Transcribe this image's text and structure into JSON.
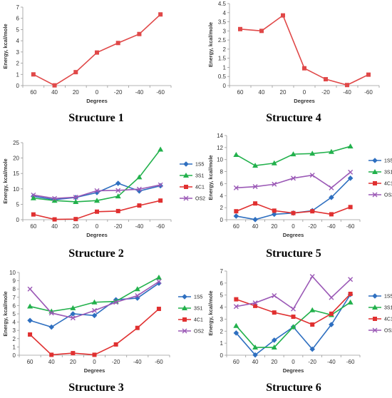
{
  "colors": {
    "1S5": "#2e6fc0",
    "3S1": "#22b14c",
    "4C1": "#e03030",
    "OS2": "#9b59b6",
    "single": "#e04848",
    "axis": "#9a9a9a",
    "text": "#333333"
  },
  "chart_data": [
    {
      "type": "line",
      "caption": "Structure 1",
      "xlabel": "Degrees",
      "ylabel": "Energy, kcal/mole",
      "categories": [
        "60",
        "40",
        "20",
        "0",
        "-20",
        "-40",
        "-60"
      ],
      "ylim": [
        0,
        7
      ],
      "yticks": [
        "0",
        "1",
        "2",
        "3",
        "4",
        "5",
        "6",
        "7"
      ],
      "legend": "none",
      "series": [
        {
          "key": "single",
          "marker": "square",
          "values": [
            1.0,
            0.02,
            1.2,
            2.95,
            3.8,
            4.6,
            6.35
          ]
        }
      ]
    },
    {
      "type": "line",
      "caption": "Structure 4",
      "xlabel": "Degrees",
      "ylabel": "Energy, kcal/mole",
      "categories": [
        "60",
        "40",
        "20",
        "0",
        "-20",
        "-40",
        "-60"
      ],
      "ylim": [
        0,
        4.5
      ],
      "yticks": [
        "0",
        "0.5",
        "1",
        "1.5",
        "2",
        "2.5",
        "3",
        "3.5",
        "4",
        "4.5"
      ],
      "legend": "none",
      "series": [
        {
          "key": "single",
          "marker": "square",
          "values": [
            3.1,
            3.0,
            3.85,
            0.95,
            0.35,
            0.03,
            0.6
          ]
        }
      ]
    },
    {
      "type": "line",
      "caption": "Structure 2",
      "xlabel": "Degrees",
      "ylabel": "Energy, kcal/mole",
      "categories": [
        "60",
        "40",
        "20",
        "0",
        "-20",
        "-40",
        "-60"
      ],
      "ylim": [
        0,
        25
      ],
      "yticks": [
        "0",
        "5",
        "10",
        "15",
        "20",
        "25"
      ],
      "legend": "right",
      "series": [
        {
          "name": "1S5",
          "key": "1S5",
          "marker": "diamond",
          "values": [
            7.6,
            6.5,
            7.2,
            8.8,
            11.8,
            9.3,
            11.0
          ]
        },
        {
          "name": "3S1",
          "key": "3S1",
          "marker": "triangle",
          "values": [
            7.0,
            6.2,
            5.8,
            6.2,
            7.6,
            13.8,
            22.8
          ]
        },
        {
          "name": "4C1",
          "key": "4C1",
          "marker": "square",
          "values": [
            1.7,
            0.1,
            0.2,
            2.6,
            2.8,
            4.6,
            6.2
          ]
        },
        {
          "name": "OS2",
          "key": "OS2",
          "marker": "x",
          "values": [
            8.0,
            6.9,
            7.3,
            9.4,
            9.5,
            9.9,
            11.3
          ]
        }
      ]
    },
    {
      "type": "line",
      "caption": "Structure 5",
      "xlabel": "Degrees",
      "ylabel": "Energy, kcal/mole",
      "categories": [
        "60",
        "40",
        "20",
        "0",
        "-20",
        "-40",
        "-60"
      ],
      "ylim": [
        0,
        14
      ],
      "yticks": [
        "0",
        "2",
        "4",
        "6",
        "8",
        "10",
        "12",
        "14"
      ],
      "legend": "right",
      "series": [
        {
          "name": "1S5",
          "key": "1S5",
          "marker": "diamond",
          "values": [
            0.6,
            0.02,
            0.9,
            1.1,
            1.5,
            3.7,
            6.9
          ]
        },
        {
          "name": "3S1",
          "key": "3S1",
          "marker": "triangle",
          "values": [
            10.8,
            9.0,
            9.4,
            10.9,
            11.0,
            11.3,
            12.2
          ]
        },
        {
          "name": "4C1",
          "key": "4C1",
          "marker": "square",
          "values": [
            1.4,
            2.7,
            1.5,
            1.1,
            1.4,
            0.9,
            2.1
          ]
        },
        {
          "name": "OS2",
          "key": "OS2",
          "marker": "x",
          "values": [
            5.3,
            5.5,
            5.9,
            6.9,
            7.4,
            5.3,
            7.9
          ]
        }
      ]
    },
    {
      "type": "line",
      "caption": "Structure 3",
      "xlabel": "Degrees",
      "ylabel": "Energy, kcal/mole",
      "categories": [
        "60",
        "40",
        "20",
        "0",
        "-20",
        "-40",
        "-60"
      ],
      "ylim": [
        0,
        10
      ],
      "yticks": [
        "0",
        "1",
        "2",
        "3",
        "4",
        "5",
        "6",
        "7",
        "8",
        "9",
        "10"
      ],
      "legend": "right",
      "series": [
        {
          "name": "1S5",
          "key": "1S5",
          "marker": "diamond",
          "values": [
            4.2,
            3.4,
            5.0,
            4.8,
            6.7,
            6.9,
            8.7
          ]
        },
        {
          "name": "3S1",
          "key": "3S1",
          "marker": "triangle",
          "values": [
            5.9,
            5.3,
            5.7,
            6.4,
            6.5,
            8.0,
            9.4
          ]
        },
        {
          "name": "4C1",
          "key": "4C1",
          "marker": "square",
          "values": [
            2.5,
            0.05,
            0.25,
            0.05,
            1.3,
            3.3,
            5.6
          ]
        },
        {
          "name": "OS2",
          "key": "OS2",
          "marker": "x",
          "values": [
            8.0,
            5.1,
            4.5,
            5.4,
            6.4,
            7.2,
            8.9
          ]
        }
      ]
    },
    {
      "type": "line",
      "caption": "Structure 6",
      "xlabel": "Degrees",
      "ylabel": "Energy, kcal/mole",
      "categories": [
        "60",
        "40",
        "20",
        "0",
        "-20",
        "-40",
        "-60"
      ],
      "ylim": [
        0,
        7
      ],
      "yticks": [
        "0",
        "1",
        "2",
        "3",
        "4",
        "5",
        "6",
        "7"
      ],
      "legend": "right",
      "series": [
        {
          "name": "1S5",
          "key": "1S5",
          "marker": "diamond",
          "values": [
            1.85,
            0.02,
            1.25,
            2.35,
            0.5,
            2.55,
            5.05
          ]
        },
        {
          "name": "3S1",
          "key": "3S1",
          "marker": "triangle",
          "values": [
            2.45,
            0.65,
            0.65,
            2.35,
            3.75,
            3.35,
            4.4
          ]
        },
        {
          "name": "4C1",
          "key": "4C1",
          "marker": "square",
          "values": [
            4.65,
            4.1,
            3.55,
            3.2,
            2.55,
            3.45,
            5.1
          ]
        },
        {
          "name": "OS2",
          "key": "OS2",
          "marker": "x",
          "values": [
            4.05,
            4.35,
            4.95,
            3.85,
            6.55,
            4.8,
            6.3
          ]
        }
      ]
    }
  ]
}
